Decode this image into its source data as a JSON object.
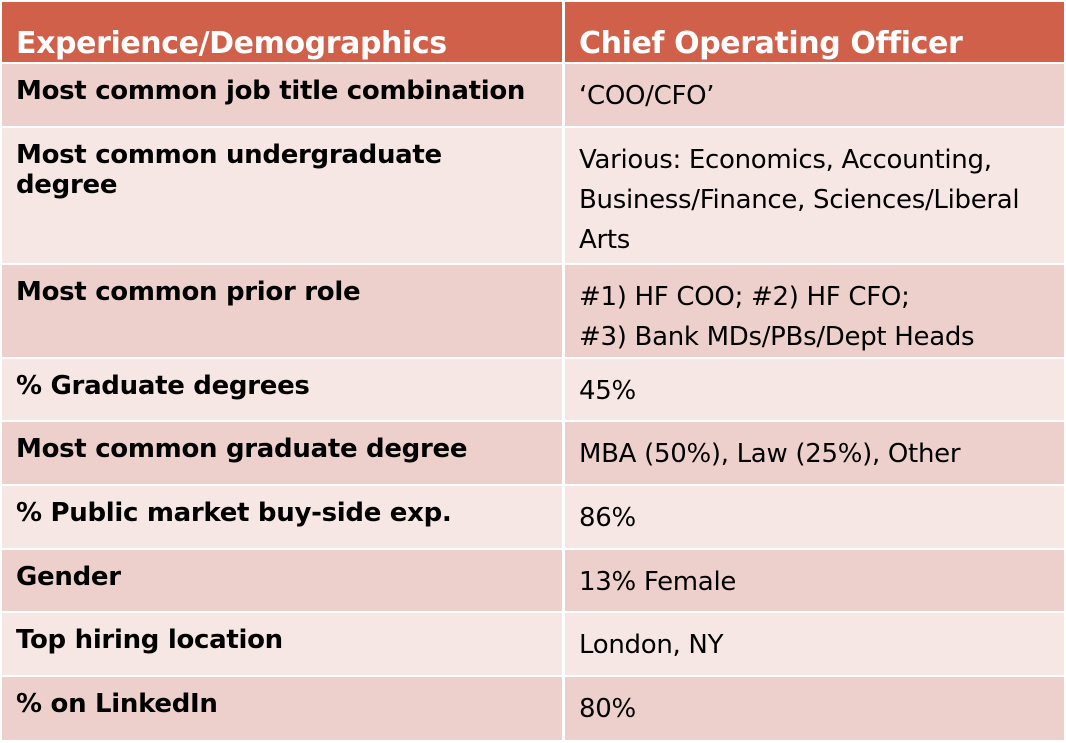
{
  "header": {
    "col1": "Experience/Demographics",
    "col2": "Chief Operating Officer"
  },
  "rows": [
    {
      "label": "Most common job title combination",
      "value": "‘COO/CFO’"
    },
    {
      "label": "Most common undergraduate degree",
      "value": "Various: Economics, Accounting, Business/Finance, Sciences/Liberal Arts"
    },
    {
      "label": "Most common prior role",
      "value_lines": [
        "#1) HF COO; #2) HF CFO;",
        "#3) Bank MDs/PBs/Dept Heads"
      ]
    },
    {
      "label": "% Graduate degrees",
      "value": "45%"
    },
    {
      "label": "Most common graduate degree",
      "value": "MBA (50%), Law (25%), Other"
    },
    {
      "label": "% Public market buy-side exp.",
      "value": "86%"
    },
    {
      "label": "Gender",
      "value": "13% Female"
    },
    {
      "label": "Top hiring location",
      "value": "London, NY"
    },
    {
      "label": "% on LinkedIn",
      "value": "80%"
    }
  ],
  "colors": {
    "header_bg": "#d06049",
    "row_dark": "#edd0cc",
    "row_light": "#f6e7e5",
    "header_text": "#ffffff"
  }
}
